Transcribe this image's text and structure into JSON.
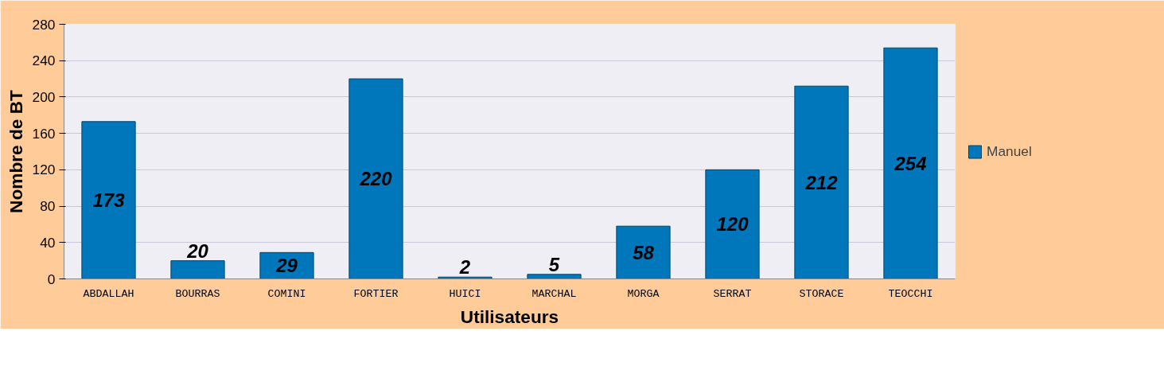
{
  "chart_data": {
    "type": "bar",
    "xlabel": "Utilisateurs",
    "ylabel": "Nombre de BT",
    "categories": [
      "ABDALLAH",
      "BOURRAS",
      "COMINI",
      "FORTIER",
      "HUICI",
      "MARCHAL",
      "MORGA",
      "SERRAT",
      "STORACE",
      "TEOCCHI"
    ],
    "series": [
      {
        "name": "Manuel",
        "color": "#0077bb",
        "values": [
          173,
          20,
          29,
          220,
          2,
          5,
          58,
          120,
          212,
          254
        ]
      }
    ],
    "ylim": [
      0,
      280
    ],
    "yticks": [
      0,
      40,
      80,
      120,
      160,
      200,
      240,
      280
    ],
    "grid": "y",
    "legend": "right",
    "data_labels": true
  }
}
